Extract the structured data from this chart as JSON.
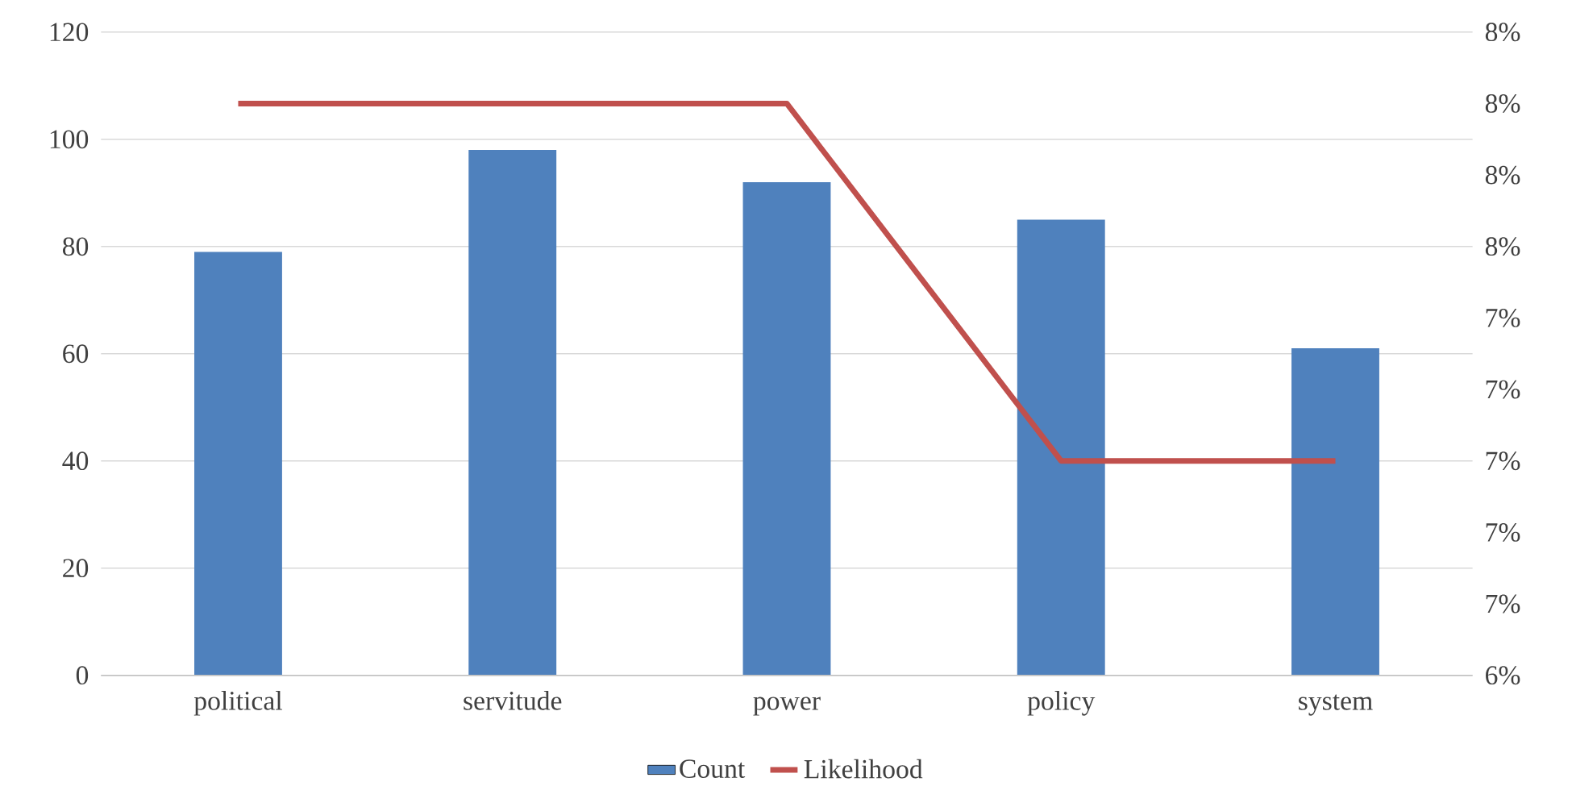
{
  "chart_data": {
    "type": "bar",
    "categories": [
      "political",
      "servitude",
      "power",
      "policy",
      "system"
    ],
    "series": [
      {
        "name": "Count",
        "color": "#4f81bd",
        "values": [
          79,
          98,
          92,
          85,
          61
        ]
      },
      {
        "name": "Likelihood",
        "type": "line",
        "axis": "y2",
        "color": "#c0504d",
        "values": [
          0.08,
          0.08,
          0.08,
          0.07,
          0.07
        ]
      }
    ],
    "ylim": [
      0,
      120
    ],
    "yticks": [
      0,
      20,
      40,
      60,
      80,
      100,
      120
    ],
    "y2lim": [
      0.064,
      0.082
    ],
    "y2ticks": [
      {
        "value": 0.064,
        "label": "6%"
      },
      {
        "value": 0.066,
        "label": "7%"
      },
      {
        "value": 0.068,
        "label": "7%"
      },
      {
        "value": 0.07,
        "label": "7%"
      },
      {
        "value": 0.072,
        "label": "7%"
      },
      {
        "value": 0.074,
        "label": "7%"
      },
      {
        "value": 0.076,
        "label": "8%"
      },
      {
        "value": 0.078,
        "label": "8%"
      },
      {
        "value": 0.08,
        "label": "8%"
      },
      {
        "value": 0.082,
        "label": "8%"
      }
    ],
    "grid": "y",
    "legend": "bottom",
    "marker": "none",
    "line_style": "solid"
  }
}
